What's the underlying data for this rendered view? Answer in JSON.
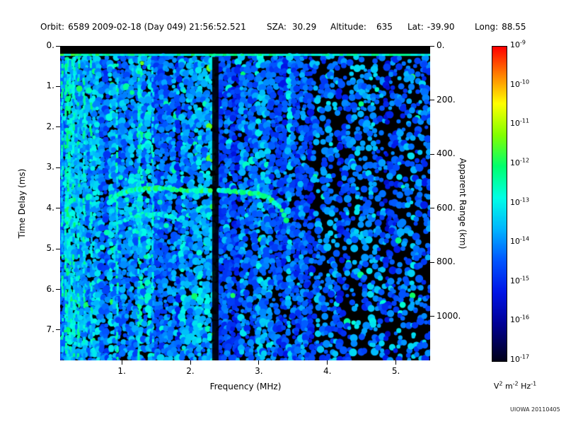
{
  "header": {
    "orbit_label": "Orbit:",
    "orbit_value": "6589",
    "datetime_value": "2009-02-18 (Day 049) 21:56:52.521",
    "sza_label": "SZA:",
    "sza_value": "30.29",
    "altitude_label": "Altitude:",
    "altitude_value": "635",
    "lat_label": "Lat:",
    "lat_value": "-39.90",
    "long_label": "Long:",
    "long_value": "88.55"
  },
  "footer": {
    "credit": "UIOWA 20110405"
  },
  "chart_data": {
    "type": "heatmap",
    "description": "Active ionospheric sounding ionogram: echo spectral density vs frequency and time delay",
    "xlabel": "Frequency (MHz)",
    "ylabel_left": "Time Delay (ms)",
    "ylabel_right": "Apparent Range (km)",
    "xlim_mhz": [
      0.1,
      5.5
    ],
    "ylim_ms": [
      0.0,
      7.75
    ],
    "x_ticks": [
      "1.",
      "2.",
      "3.",
      "4.",
      "5."
    ],
    "x_tick_values": [
      1,
      2,
      3,
      4,
      5
    ],
    "y_ticks_left": [
      "0.",
      "1.",
      "2.",
      "3.",
      "4.",
      "5.",
      "6.",
      "7."
    ],
    "y_tick_values_left": [
      0,
      1,
      2,
      3,
      4,
      5,
      6,
      7
    ],
    "y_ticks_right": [
      "0.",
      "200.",
      "400.",
      "600.",
      "800.",
      "1000."
    ],
    "y_tick_values_right_km": [
      0,
      200,
      400,
      600,
      800,
      1000
    ],
    "grid": false,
    "background": "#000000",
    "colorbar": {
      "scale": "log",
      "tick_exponents": [
        -9,
        -10,
        -11,
        -12,
        -13,
        -14,
        -15,
        -16,
        -17
      ],
      "unit_parts": [
        [
          "V",
          "2"
        ],
        [
          " m",
          "-2"
        ],
        [
          " Hz",
          "-1"
        ]
      ],
      "position": "right"
    },
    "colormap_stops": [
      [
        0.0,
        "#000018"
      ],
      [
        0.12,
        "#000096"
      ],
      [
        0.22,
        "#0014e6"
      ],
      [
        0.32,
        "#0055ff"
      ],
      [
        0.42,
        "#00b4ff"
      ],
      [
        0.52,
        "#00ffe6"
      ],
      [
        0.62,
        "#00ff6e"
      ],
      [
        0.72,
        "#82ff00"
      ],
      [
        0.82,
        "#ffff00"
      ],
      [
        0.91,
        "#ff8200"
      ],
      [
        1.0,
        "#ff0000"
      ]
    ],
    "features": {
      "surface_reflection_line_ms": 0.22,
      "noise_start_ms": 0.3,
      "dark_band_mhz": 2.36,
      "sparse_noise_above_mhz": 3.8,
      "plasma_stripe_freqs_mhz": [
        0.13,
        0.18,
        0.24,
        0.3,
        0.37,
        0.45,
        0.55,
        0.93,
        1.25,
        1.45
      ],
      "ionosphere_echo_trace_mhz_ms": [
        [
          0.82,
          3.85
        ],
        [
          0.95,
          3.65
        ],
        [
          1.15,
          3.55
        ],
        [
          1.5,
          3.5
        ],
        [
          1.8,
          3.55
        ],
        [
          2.1,
          3.57
        ],
        [
          2.45,
          3.57
        ],
        [
          2.75,
          3.6
        ],
        [
          3.0,
          3.65
        ],
        [
          3.15,
          3.75
        ],
        [
          3.3,
          3.95
        ],
        [
          3.4,
          4.3
        ]
      ],
      "second_echo_trace_mhz_ms": [
        [
          0.9,
          4.4
        ],
        [
          1.05,
          4.28
        ],
        [
          1.3,
          4.18
        ],
        [
          1.55,
          4.15
        ],
        [
          1.75,
          4.22
        ],
        [
          1.9,
          4.32
        ]
      ],
      "bright_patches_mhz_ms": [
        [
          0.25,
          1.0
        ],
        [
          0.38,
          1.05
        ],
        [
          0.52,
          1.1
        ],
        [
          1.15,
          1.15
        ],
        [
          2.62,
          6.15
        ],
        [
          1.35,
          5.2
        ],
        [
          0.78,
          4.6
        ]
      ],
      "echo_cluster_region": {
        "f_mhz": [
          0.85,
          1.75
        ],
        "t_ms": [
          3.2,
          4.7
        ]
      }
    }
  }
}
